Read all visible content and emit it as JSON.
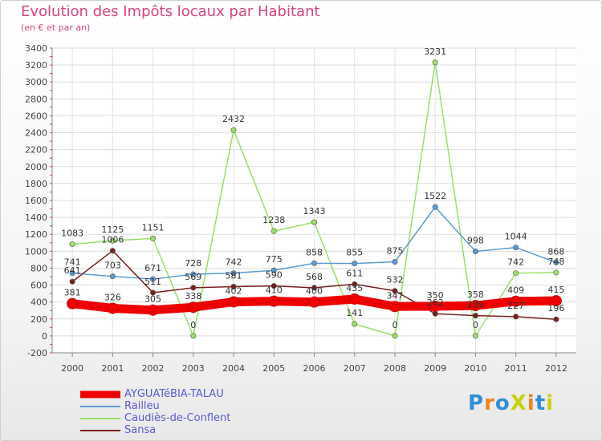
{
  "chart_data": {
    "type": "line",
    "title": "Evolution des Impôts locaux par Habitant",
    "subtitle": "(en € et par an)",
    "categories": [
      "2000",
      "2001",
      "2002",
      "2003",
      "2004",
      "2005",
      "2006",
      "2007",
      "2008",
      "2009",
      "2010",
      "2011",
      "2012"
    ],
    "ylim": [
      -200,
      3400
    ],
    "yticks": [
      "-200",
      "0",
      "200",
      "400",
      "600",
      "800",
      "1000",
      "1200",
      "1400",
      "1600",
      "1800",
      "2000",
      "2200",
      "2400",
      "2600",
      "2800",
      "3000",
      "3200",
      "3400"
    ],
    "grid": true,
    "legend_position": "bottom-left",
    "series": [
      {
        "name": "AYGUATéBIA-TALAU",
        "color": "#ee0000",
        "values": [
          381,
          326,
          305,
          338,
          402,
          410,
          400,
          435,
          347,
          350,
          358,
          409,
          415
        ],
        "labels": [
          "381",
          "326",
          "305",
          "338",
          "402",
          "410",
          "400",
          "435",
          "347",
          "350",
          "358",
          "409",
          "415"
        ]
      },
      {
        "name": "Railleu",
        "color": "#5b9bd5",
        "values": [
          741,
          703,
          671,
          728,
          742,
          775,
          858,
          855,
          875,
          1522,
          998,
          1044,
          868
        ],
        "labels": [
          "741",
          "703",
          "671",
          "728",
          "742",
          "775",
          "858",
          "855",
          "875",
          "1522",
          "998",
          "1044",
          "868"
        ]
      },
      {
        "name": "Caudiès-de-Conflent",
        "color": "#99e066",
        "values": [
          1083,
          1125,
          1151,
          0,
          2432,
          1238,
          1343,
          141,
          0,
          3231,
          0,
          742,
          748
        ],
        "labels": [
          "1083",
          "1125",
          "1151",
          "0",
          "2432",
          "1238",
          "1343",
          "141",
          "0",
          "3231",
          "0",
          "742",
          "748"
        ]
      },
      {
        "name": "Sansa",
        "color": "#7a1e1e",
        "values": [
          641,
          1006,
          511,
          569,
          581,
          590,
          568,
          611,
          532,
          262,
          239,
          227,
          196
        ],
        "labels": [
          "641",
          "1006",
          "511",
          "569",
          "581",
          "590",
          "568",
          "611",
          "532",
          "262",
          "239",
          "227",
          "196"
        ]
      }
    ]
  },
  "brand": {
    "text": "ProXiti"
  }
}
